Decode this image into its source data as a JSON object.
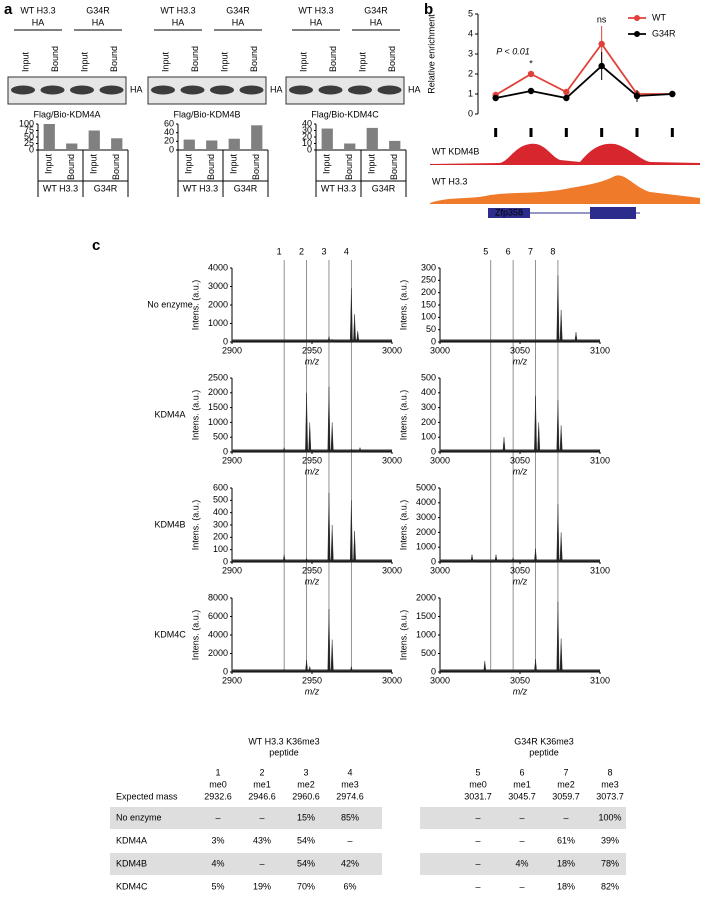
{
  "panel_a": {
    "label": "a",
    "blots": [
      {
        "groups": [
          {
            "name": "WT H3.3",
            "tag": "HA"
          },
          {
            "name": "G34R",
            "tag": "HA"
          }
        ],
        "lanes": [
          "Input",
          "Bound",
          "Input",
          "Bound"
        ],
        "band_label": "HA",
        "caption": "Flag/Bio-KDM4A",
        "chart_data": {
          "type": "bar",
          "values": [
            100,
            25,
            75,
            45
          ],
          "color": "#808080",
          "ylim": [
            0,
            100
          ],
          "yticks": [
            0,
            25,
            50,
            75,
            100
          ]
        }
      },
      {
        "groups": [
          {
            "name": "WT H3.3",
            "tag": "HA"
          },
          {
            "name": "G34R",
            "tag": "HA"
          }
        ],
        "lanes": [
          "Input",
          "Bound",
          "Input",
          "Bound"
        ],
        "band_label": "HA",
        "caption": "Flag/Bio-KDM4B",
        "chart_data": {
          "type": "bar",
          "values": [
            24,
            22,
            26,
            57
          ],
          "color": "#808080",
          "ylim": [
            0,
            60
          ],
          "yticks": [
            0,
            20,
            40,
            60
          ]
        }
      },
      {
        "groups": [
          {
            "name": "WT H3.3",
            "tag": "HA"
          },
          {
            "name": "G34R",
            "tag": "HA"
          }
        ],
        "lanes": [
          "Input",
          "Bound",
          "Input",
          "Bound"
        ],
        "band_label": "HA",
        "caption": "Flag/Bio-KDM4C",
        "chart_data": {
          "type": "bar",
          "values": [
            33,
            10,
            34,
            14
          ],
          "color": "#808080",
          "ylim": [
            0,
            40
          ],
          "yticks": [
            0,
            10,
            20,
            30,
            40
          ]
        }
      }
    ]
  },
  "panel_b": {
    "label": "b",
    "chart_data": {
      "type": "line",
      "ylabel": "Relative enrichment",
      "ylim": [
        0,
        5
      ],
      "yticks": [
        0,
        1,
        2,
        3,
        4,
        5
      ],
      "series": [
        {
          "name": "WT",
          "color": "#e0403a",
          "values": [
            0.95,
            2.0,
            1.1,
            3.5,
            1.0,
            1.0
          ],
          "errors": [
            0.1,
            0.15,
            0.15,
            0.9,
            0.2,
            0.05
          ]
        },
        {
          "name": "G34R",
          "color": "#000000",
          "values": [
            0.8,
            1.15,
            0.8,
            2.4,
            0.9,
            1.0
          ],
          "errors": [
            0.05,
            0.05,
            0.1,
            0.7,
            0.3,
            0.05
          ]
        }
      ],
      "annotations": [
        "P < 0.01",
        "*",
        "ns"
      ]
    },
    "tracks": [
      "WT KDM4B",
      "WT H3.3"
    ],
    "gene": "Zfp358"
  },
  "panel_c": {
    "label": "c",
    "xlabel": "m/z",
    "ylabel": "Intens. (a.u.)",
    "conditions": [
      "No enzyme",
      "KDM4A",
      "KDM4B",
      "KDM4C"
    ],
    "expected_mass_label": "Expected mass",
    "peptides": [
      {
        "title": [
          "WT H3.3 K36me3",
          "peptide"
        ],
        "peak_numbers": [
          "1",
          "2",
          "3",
          "4"
        ],
        "states": [
          "me0",
          "me1",
          "me2",
          "me3"
        ],
        "expected_mass": [
          2932.6,
          2946.6,
          2960.6,
          2974.6
        ],
        "xlim": [
          2900,
          3000
        ],
        "xticks": [
          2900,
          2950,
          3000
        ],
        "spectra": [
          {
            "ylim": [
              0,
              4000
            ],
            "yticks": [
              0,
              1000,
              2000,
              3000,
              4000
            ],
            "mz": [
              2946.6,
              2960.6,
              2962.6,
              2974.6,
              2976.6,
              2978.6
            ],
            "intensity": [
              100,
              300,
              150,
              2900,
              1500,
              600
            ]
          },
          {
            "ylim": [
              0,
              2500
            ],
            "yticks": [
              0,
              500,
              1000,
              1500,
              2000,
              2500
            ],
            "mz": [
              2932.6,
              2946.6,
              2948.6,
              2960.6,
              2962.6,
              2974.6,
              2980
            ],
            "intensity": [
              150,
              2000,
              1000,
              2200,
              1000,
              100,
              150
            ]
          },
          {
            "ylim": [
              0,
              600
            ],
            "yticks": [
              0,
              100,
              200,
              300,
              400,
              500,
              600
            ],
            "mz": [
              2932.6,
              2946.6,
              2960.6,
              2962.6,
              2974.6,
              2976.6
            ],
            "intensity": [
              60,
              30,
              560,
              300,
              500,
              250
            ]
          },
          {
            "ylim": [
              0,
              8000
            ],
            "yticks": [
              0,
              2000,
              4000,
              6000,
              8000
            ],
            "mz": [
              2932.6,
              2946.6,
              2948.6,
              2960.6,
              2962.6,
              2974.6
            ],
            "intensity": [
              300,
              1300,
              600,
              6800,
              3500,
              600
            ]
          }
        ],
        "percentages": [
          [
            "–",
            "–",
            "15%",
            "85%"
          ],
          [
            "3%",
            "43%",
            "54%",
            "–"
          ],
          [
            "4%",
            "–",
            "54%",
            "42%"
          ],
          [
            "5%",
            "19%",
            "70%",
            "6%"
          ]
        ]
      },
      {
        "title": [
          "G34R K36me3",
          "peptide"
        ],
        "peak_numbers": [
          "5",
          "6",
          "7",
          "8"
        ],
        "states": [
          "me0",
          "me1",
          "me2",
          "me3"
        ],
        "expected_mass": [
          3031.7,
          3045.7,
          3059.7,
          3073.7
        ],
        "xlim": [
          3000,
          3100
        ],
        "xticks": [
          3000,
          3050,
          3100
        ],
        "spectra": [
          {
            "ylim": [
              0,
              300
            ],
            "yticks": [
              0,
              50,
              100,
              150,
              200,
              250,
              300
            ],
            "mz": [
              3073.7,
              3075.7,
              3085
            ],
            "intensity": [
              270,
              130,
              40
            ]
          },
          {
            "ylim": [
              0,
              500
            ],
            "yticks": [
              0,
              100,
              200,
              300,
              400,
              500
            ],
            "mz": [
              3040,
              3059.7,
              3061.7,
              3073.7,
              3075.7
            ],
            "intensity": [
              100,
              380,
              200,
              350,
              180
            ]
          },
          {
            "ylim": [
              0,
              5000
            ],
            "yticks": [
              0,
              1000,
              2000,
              3000,
              4000,
              5000
            ],
            "mz": [
              3020,
              3035,
              3045.7,
              3059.7,
              3073.7,
              3075.7
            ],
            "intensity": [
              500,
              500,
              300,
              900,
              3900,
              2000
            ]
          },
          {
            "ylim": [
              0,
              2000
            ],
            "yticks": [
              0,
              500,
              1000,
              1500,
              2000
            ],
            "mz": [
              3028,
              3059.7,
              3073.7,
              3075.7
            ],
            "intensity": [
              300,
              350,
              1900,
              900
            ]
          }
        ],
        "percentages": [
          [
            "–",
            "–",
            "–",
            "100%"
          ],
          [
            "–",
            "–",
            "61%",
            "39%"
          ],
          [
            "–",
            "4%",
            "18%",
            "78%"
          ],
          [
            "–",
            "–",
            "18%",
            "82%"
          ]
        ]
      }
    ]
  }
}
